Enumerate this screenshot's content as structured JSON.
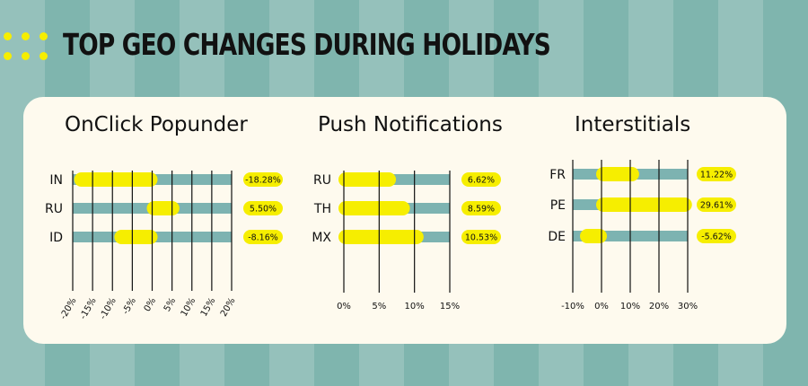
{
  "title": "TOP GEO CHANGES DURING HOLIDAYS",
  "colors": {
    "bar_track": "#7db3b1",
    "highlight": "#f6ee00",
    "card_bg": "#fefaee",
    "text": "#111111"
  },
  "chart_data": [
    {
      "type": "bar",
      "title": "OnClick Popunder",
      "categories": [
        "IN",
        "RU",
        "ID"
      ],
      "values": [
        -18.28,
        5.5,
        -8.16
      ],
      "value_labels": [
        "-18.28%",
        "5.50%",
        "-8.16%"
      ],
      "xlim": [
        -20,
        20
      ],
      "ticks": [
        -20,
        -15,
        -10,
        -5,
        0,
        5,
        10,
        15,
        20
      ],
      "tick_labels": [
        "-20%",
        "-15%",
        "-10%",
        "-5%",
        "0%",
        "5%",
        "10%",
        "15%",
        "20%"
      ],
      "grid": true
    },
    {
      "type": "bar",
      "title": "Push Notifications",
      "categories": [
        "RU",
        "TH",
        "MX"
      ],
      "values": [
        6.62,
        8.59,
        10.53
      ],
      "value_labels": [
        "6.62%",
        "8.59%",
        "10.53%"
      ],
      "xlim": [
        0,
        15
      ],
      "ticks": [
        0,
        5,
        10,
        15
      ],
      "tick_labels": [
        "0%",
        "5%",
        "10%",
        "15%"
      ],
      "grid": true
    },
    {
      "type": "bar",
      "title": "Interstitials",
      "categories": [
        "FR",
        "PE",
        "DE"
      ],
      "values": [
        11.22,
        29.61,
        -5.62
      ],
      "value_labels": [
        "11.22%",
        "29.61%",
        "-5.62%"
      ],
      "xlim": [
        -10,
        30
      ],
      "ticks": [
        -10,
        0,
        10,
        20,
        30
      ],
      "tick_labels": [
        "-10%",
        "0%",
        "10%",
        "20%",
        "30%"
      ],
      "grid": true
    }
  ]
}
